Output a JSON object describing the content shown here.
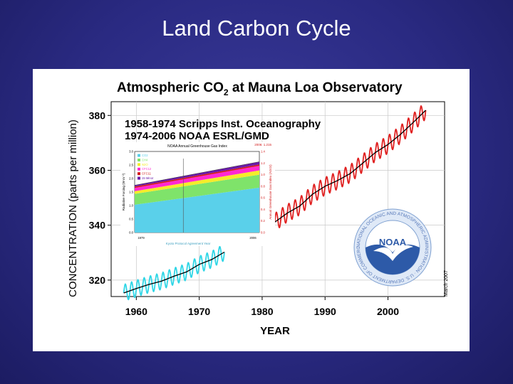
{
  "slide": {
    "title": "Land Carbon Cycle"
  },
  "chart_data": {
    "type": "line",
    "title": "Atmospheric CO",
    "title_subscript": "2",
    "title_suffix": " at Mauna Loa Observatory",
    "source_lines": [
      "1958-1974 Scripps Inst. Oceanography",
      "1974-2006 NOAA ESRL/GMD"
    ],
    "xlabel": "YEAR",
    "ylabel": "CONCENTRATION (parts per million)",
    "xlim": [
      1956,
      2009
    ],
    "ylim": [
      314,
      385
    ],
    "x_ticks": [
      1960,
      1970,
      1980,
      1990,
      2000
    ],
    "y_ticks": [
      320,
      340,
      360,
      380
    ],
    "grid": true,
    "logo_text": "NOAA",
    "logo_ring_text": "NATIONAL OCEANIC AND ATMOSPHERIC ADMINISTRATION · U.S. DEPARTMENT OF COMMERCE",
    "side_credit": "March 2007",
    "series": [
      {
        "color": "#2fd6e6",
        "seasonal_amplitude": 3,
        "x": [
          1958,
          1960,
          1962,
          1964,
          1966,
          1968,
          1970,
          1972,
          1974
        ],
        "y": [
          315.3,
          316.9,
          318.4,
          319.6,
          321.4,
          323.0,
          325.7,
          327.5,
          330.2
        ]
      },
      {
        "color": "#e02020",
        "seasonal_amplitude": 3.2,
        "x": [
          1982,
          1984,
          1986,
          1988,
          1990,
          1992,
          1994,
          1996,
          1998,
          2000,
          2002,
          2004,
          2006
        ],
        "y": [
          341.1,
          344.4,
          347.0,
          351.3,
          354.2,
          356.3,
          358.8,
          362.6,
          366.5,
          369.4,
          373.1,
          377.4,
          381.9
        ]
      }
    ],
    "trend": {
      "color": "#000000",
      "x": [
        1958,
        1960,
        1962,
        1964,
        1966,
        1968,
        1970,
        1972,
        1974,
        1982,
        1984,
        1986,
        1988,
        1990,
        1992,
        1994,
        1996,
        1998,
        2000,
        2002,
        2004,
        2006
      ],
      "y": [
        315.3,
        316.9,
        318.4,
        319.6,
        321.4,
        323.0,
        325.7,
        327.5,
        330.2,
        341.1,
        344.4,
        347.0,
        351.3,
        354.2,
        356.3,
        358.8,
        362.6,
        366.5,
        369.4,
        373.1,
        377.4,
        381.9
      ]
    },
    "inset": {
      "type": "area",
      "title": "NOAA Annual Greenhouse Gas Index",
      "ylabel_left": "Radiative Forcing (W m⁻²)",
      "ylabel_right": "Annual Greenhouse Gas Index (AGGI)",
      "corner_label": "2006: 1.215",
      "caption": "Kyoto Protocol Agreement Year",
      "left_ticks": [
        "3.0",
        "2.5",
        "2.0",
        "1.5",
        "1.0",
        "0.5",
        "0.0"
      ],
      "right_ticks": [
        "1.4",
        "1.2",
        "1.0",
        "0.8",
        "0.6",
        "0.4",
        "0.2",
        "0.0"
      ],
      "x_years": [
        1979,
        2006
      ],
      "legend": [
        {
          "label": "CO2",
          "color": "#5ad0ea"
        },
        {
          "label": "CH4",
          "color": "#7fe36a"
        },
        {
          "label": "N2O",
          "color": "#f5ec2a"
        },
        {
          "label": "CFC12",
          "color": "#ff28d2"
        },
        {
          "label": "CFC11",
          "color": "#d21a1a"
        },
        {
          "label": "15 Minor",
          "color": "#6a1aa8"
        }
      ],
      "stack_1979": [
        1.03,
        0.4,
        0.1,
        0.12,
        0.05,
        0.05
      ],
      "stack_2006": [
        1.66,
        0.48,
        0.16,
        0.17,
        0.05,
        0.1
      ]
    }
  }
}
